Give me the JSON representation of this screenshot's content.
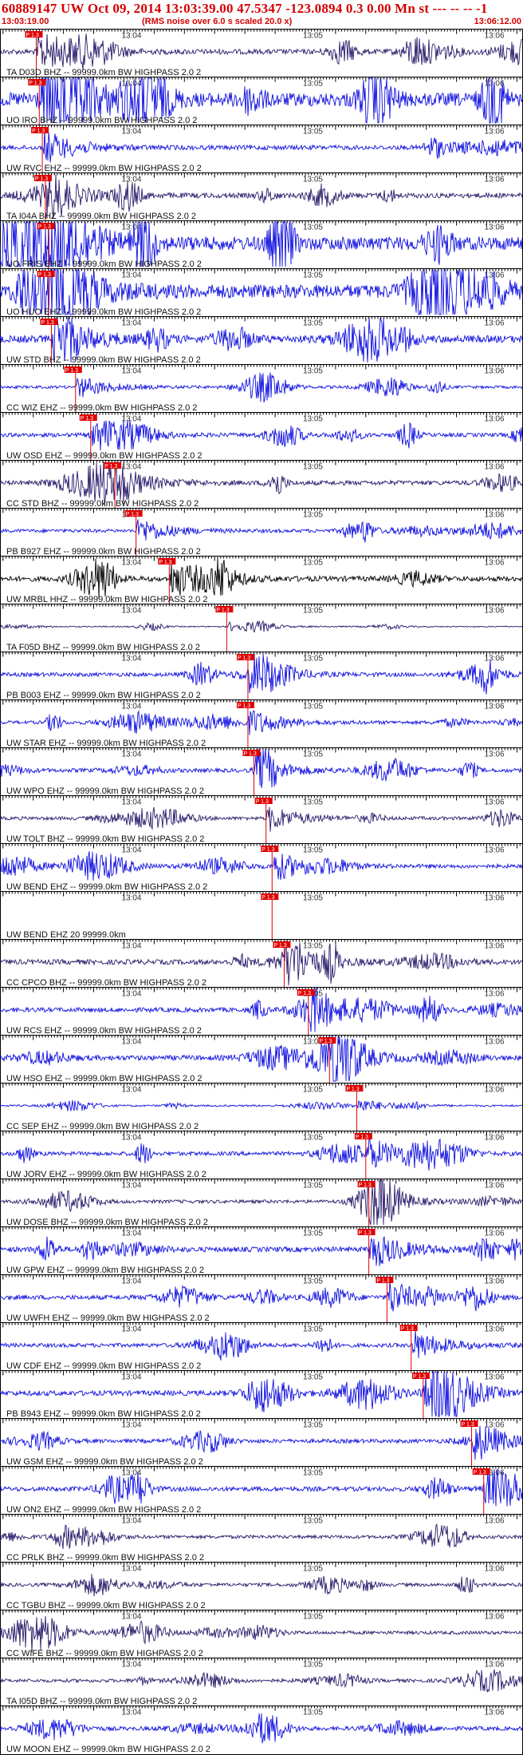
{
  "header": {
    "title": "60889147 UW Oct 09, 2014 13:03:39.00   47.5347 -123.0894  0.3 0.00 Mn st --- -- -- -1",
    "start_time": "13:03:19.00",
    "scale_note": "(RMS noise over 6.0 s scaled 20.0 x)",
    "end_time": "13:06:12.00"
  },
  "colors": {
    "blue_trace": "#1010e0",
    "dark_trace": "#2a1a6a",
    "black_trace": "#000000",
    "pick": "#e00000",
    "frame": "#000000"
  },
  "time_axis": {
    "start_seconds": 0,
    "end_seconds": 173,
    "major_tick_labels": [
      {
        "label": "13:04",
        "t": 41
      },
      {
        "label": "13:05",
        "t": 101
      },
      {
        "label": "13:06",
        "t": 161
      }
    ]
  },
  "traces": [
    {
      "label": "TA D03D BHZ -- 99999.0km BW  HIGHPASS  2.0  2",
      "color": "dark",
      "amp": 9,
      "pick_t": 12,
      "pick_text": "P 1.3"
    },
    {
      "label": "UO IRO BHZ -- 99999.0km BW  HIGHPASS  2.0  2",
      "color": "blue",
      "amp": 24,
      "pick_t": 13,
      "pick_text": "P 1.3"
    },
    {
      "label": "UW RVC EHZ -- 99999.0km BW  HIGHPASS  2.0  2",
      "color": "blue",
      "amp": 8,
      "pick_t": 14,
      "pick_text": "P 1.3"
    },
    {
      "label": "TA I04A BHZ -- 99999.0km BW  HIGHPASS  2.0  2",
      "color": "dark",
      "amp": 9,
      "pick_t": 15,
      "pick_text": "P 1.3"
    },
    {
      "label": "UO FRIS EHZ -- 99999.0km BW  HIGHPASS  2.0  2",
      "color": "blue",
      "amp": 24,
      "pick_t": 16,
      "pick_text": "P 1.3"
    },
    {
      "label": "UO HUO EHZ -- 99999.0km BW  HIGHPASS  2.0  2",
      "color": "blue",
      "amp": 24,
      "pick_t": 16,
      "pick_text": "P 1.3"
    },
    {
      "label": "UW STD BHZ -- 99999.0km BW  HIGHPASS  2.0  2",
      "color": "blue",
      "amp": 13,
      "pick_t": 17,
      "pick_text": "P 1.3"
    },
    {
      "label": "CC WIZ EHZ -- 99999.0km BW  HIGHPASS  2.0  2",
      "color": "blue",
      "amp": 5,
      "pick_t": 25,
      "pick_text": "P 1.3"
    },
    {
      "label": "UW OSD EHZ -- 99999.0km BW  HIGHPASS  2.0  2",
      "color": "blue",
      "amp": 7,
      "pick_t": 30,
      "pick_text": "P 1.3"
    },
    {
      "label": "CC STD BHZ -- 99999.0km BW  HIGHPASS  2.0  2",
      "color": "dark",
      "amp": 8,
      "pick_t": 38,
      "pick_text": "P 1.3"
    },
    {
      "label": "PB B927 EHZ -- 99999.0km BW  HIGHPASS  2.0  2",
      "color": "blue",
      "amp": 6,
      "pick_t": 45,
      "pick_text": "P 1.3"
    },
    {
      "label": "UW MRBL HHZ -- 99999.0km BW  HIGHPASS  2.0  2",
      "color": "black",
      "amp": 9,
      "pick_t": 56,
      "pick_text": "P 1.3"
    },
    {
      "label": "TA F05D BHZ -- 99999.0km BW  HIGHPASS  2.0  2",
      "color": "dark",
      "amp": 2,
      "pick_t": 75,
      "pick_text": "P 1.3"
    },
    {
      "label": "PB B003 EHZ -- 99999.0km BW  HIGHPASS  2.0  2",
      "color": "blue",
      "amp": 7,
      "pick_t": 82,
      "pick_text": "P 1.3"
    },
    {
      "label": "UW STAR EHZ -- 99999.0km BW  HIGHPASS  2.0  2",
      "color": "blue",
      "amp": 6,
      "pick_t": 82,
      "pick_text": "P 1.3"
    },
    {
      "label": "UW WPO EHZ -- 99999.0km BW  HIGHPASS  2.0  2",
      "color": "blue",
      "amp": 7,
      "pick_t": 84,
      "pick_text": "P 1.3"
    },
    {
      "label": "UW TOLT BHZ -- 99999.0km BW  HIGHPASS  2.0  2",
      "color": "dark",
      "amp": 6,
      "pick_t": 88,
      "pick_text": "P 1.3"
    },
    {
      "label": "UW BEND EHZ -- 99999.0km BW  HIGHPASS  2.0  2",
      "color": "blue",
      "amp": 7,
      "pick_t": 90,
      "pick_text": "P 1.3"
    },
    {
      "label": "UW BEND EHZ 20 99999.0km",
      "color": "none",
      "amp": 0,
      "pick_t": 90,
      "pick_text": "P 1.3"
    },
    {
      "label": "CC CPCO BHZ -- 99999.0km BW  HIGHPASS  2.0  2",
      "color": "dark",
      "amp": 9,
      "pick_t": 94,
      "pick_text": "P 1.3"
    },
    {
      "label": "UW RCS EHZ -- 99999.0km BW  HIGHPASS  2.0  2",
      "color": "blue",
      "amp": 8,
      "pick_t": 102,
      "pick_text": "P 1.3"
    },
    {
      "label": "UW HSO EHZ -- 99999.0km BW  HIGHPASS  2.0  2",
      "color": "blue",
      "amp": 9,
      "pick_t": 109,
      "pick_text": "P 1.3"
    },
    {
      "label": "CC SEP EHZ -- 99999.0km BW  HIGHPASS  2.0  2",
      "color": "blue",
      "amp": 3,
      "pick_t": 118,
      "pick_text": "P 1.3"
    },
    {
      "label": "UW JORV EHZ -- 99999.0km BW  HIGHPASS  2.0  2",
      "color": "blue",
      "amp": 7,
      "pick_t": 121,
      "pick_text": "P 1.3"
    },
    {
      "label": "UW DOSE BHZ -- 99999.0km BW  HIGHPASS  2.0  2",
      "color": "dark",
      "amp": 6,
      "pick_t": 122,
      "pick_text": "P 1.3"
    },
    {
      "label": "UW GPW EHZ -- 99999.0km BW  HIGHPASS  2.0  2",
      "color": "blue",
      "amp": 9,
      "pick_t": 122,
      "pick_text": "P 1.3"
    },
    {
      "label": "UW UWFH EHZ -- 99999.0km BW  HIGHPASS  2.0  2",
      "color": "blue",
      "amp": 8,
      "pick_t": 128,
      "pick_text": "P 1.3"
    },
    {
      "label": "UW CDF EHZ -- 99999.0km BW  HIGHPASS  2.0  2",
      "color": "blue",
      "amp": 7,
      "pick_t": 136,
      "pick_text": "P 1.3"
    },
    {
      "label": "PB B943 EHZ -- 99999.0km BW  HIGHPASS  2.0  2",
      "color": "blue",
      "amp": 9,
      "pick_t": 140,
      "pick_text": "P 1.3"
    },
    {
      "label": "UW GSM EHZ -- 99999.0km BW  HIGHPASS  2.0  2",
      "color": "blue",
      "amp": 7,
      "pick_t": 156,
      "pick_text": "P 1.3"
    },
    {
      "label": "UW ON2 EHZ -- 99999.0km BW  HIGHPASS  2.0  2",
      "color": "blue",
      "amp": 8,
      "pick_t": 160,
      "pick_text": "P 1.3"
    },
    {
      "label": "CC PRLK BHZ -- 99999.0km BW  HIGHPASS  2.0  2",
      "color": "dark",
      "amp": 6,
      "pick_t": null,
      "pick_text": ""
    },
    {
      "label": "CC TGBU BHZ -- 99999.0km BW  HIGHPASS  2.0  2",
      "color": "dark",
      "amp": 6,
      "pick_t": null,
      "pick_text": ""
    },
    {
      "label": "CC WIFE BHZ -- 99999.0km BW  HIGHPASS  2.0  2",
      "color": "dark",
      "amp": 6,
      "pick_t": null,
      "pick_text": ""
    },
    {
      "label": "TA I05D BHZ -- 99999.0km BW  HIGHPASS  2.0  2",
      "color": "dark",
      "amp": 6,
      "pick_t": null,
      "pick_text": ""
    },
    {
      "label": "UW MOON EHZ -- 99999.0km BW  HIGHPASS  2.0  2",
      "color": "blue",
      "amp": 7,
      "pick_t": null,
      "pick_text": ""
    }
  ]
}
